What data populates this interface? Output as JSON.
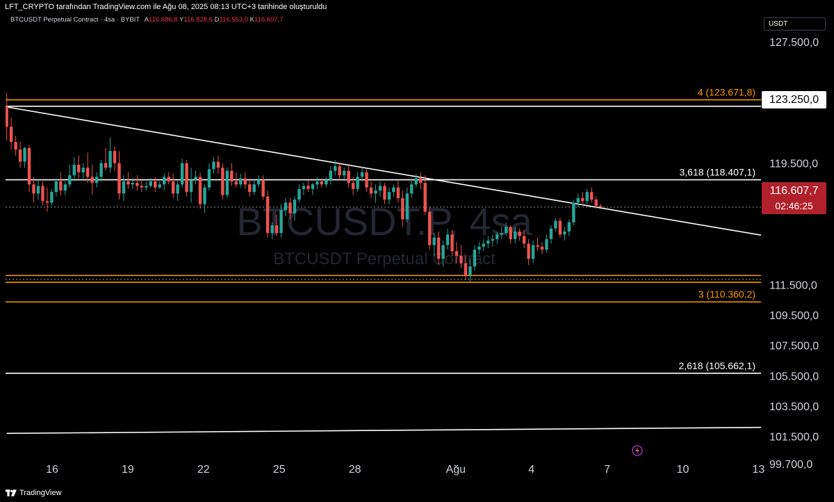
{
  "header": {
    "publisher_line": "LFT_CRYPTO tarafından TradingView.com ile Ağu 08, 2025 08:13 UTC+3 tarihinde oluşturuldu"
  },
  "legend": {
    "symbol": "BTCUSDT Perpetual Contract · 4sa · BYBIT",
    "open_label": "A",
    "open": "116.686,8",
    "high_label": "Y",
    "high": "116.828,6",
    "low_label": "D",
    "low": "116.553,0",
    "close_label": "K",
    "close": "116.607,7"
  },
  "watermark": {
    "ticker": "BTCUSDT.P, 4sa",
    "description": "BTCUSDT Perpetual Contract"
  },
  "price_axis": {
    "currency": "USDT",
    "last_price": "116.607,7",
    "countdown": "02:46:25",
    "marked_level": "123.250,0"
  },
  "footer": {
    "brand": "TradingView"
  },
  "colors": {
    "up": "#26a69a",
    "down": "#ef5350",
    "fib": "#ff9800",
    "line": "#ffffff",
    "badge": "#b0212b"
  },
  "icons": {
    "bottom_right": "lightning-icon"
  },
  "chart_data": {
    "type": "candlestick",
    "ylim": [
      99200,
      130000
    ],
    "y_ticks": [
      {
        "value": 127500,
        "label": "127.500,0"
      },
      {
        "value": 119500,
        "label": "119.500,0"
      },
      {
        "value": 111500,
        "label": "111.500,0"
      },
      {
        "value": 109500,
        "label": "109.500,0"
      },
      {
        "value": 107500,
        "label": "107.500,0"
      },
      {
        "value": 105500,
        "label": "105.500,0"
      },
      {
        "value": 103500,
        "label": "103.500,0"
      },
      {
        "value": 101500,
        "label": "101.500,0"
      },
      {
        "value": 99700,
        "label": "99.700,0"
      }
    ],
    "x_ticks": [
      {
        "label": "16",
        "day": 16
      },
      {
        "label": "19",
        "day": 19
      },
      {
        "label": "22",
        "day": 22
      },
      {
        "label": "25",
        "day": 25
      },
      {
        "label": "28",
        "day": 28
      },
      {
        "label": "Ağu",
        "day": 32
      },
      {
        "label": "4",
        "day": 35
      },
      {
        "label": "7",
        "day": 38
      },
      {
        "label": "10",
        "day": 41
      },
      {
        "label": "13",
        "day": 44
      }
    ],
    "xlim": [
      14.15,
      44.3
    ],
    "horizontal_levels": [
      {
        "label": "4 (123.671,8)",
        "value": 123671.8,
        "color": "#ff9800"
      },
      {
        "label": "",
        "value": 123250,
        "color": "#ffffff"
      },
      {
        "label": "3,618 (118.407,1)",
        "value": 118407.1,
        "color": "#ffffff"
      },
      {
        "label": "",
        "value": 116607.7,
        "color": "#ffffff",
        "style": "dotted"
      },
      {
        "label": "",
        "value": 112100,
        "color": "#ff9800"
      },
      {
        "label": "",
        "value": 111850,
        "color": "#ffffff",
        "style": "dotted"
      },
      {
        "label": "",
        "value": 111650,
        "color": "#ff9800"
      },
      {
        "label": "3 (110.360,2)",
        "value": 110360.2,
        "color": "#ff9800"
      },
      {
        "label": "2,618 (105.662,1)",
        "value": 105662.1,
        "color": "#ffffff"
      }
    ],
    "trendlines": [
      {
        "x1": 14.2,
        "y1": 123200,
        "x2": 44.3,
        "y2": 114700
      },
      {
        "x1": 14.2,
        "y1": 101700,
        "x2": 44.3,
        "y2": 102100
      }
    ],
    "candles": [
      [
        123250,
        124100,
        121000,
        121900
      ],
      [
        121900,
        122500,
        120400,
        120900
      ],
      [
        120900,
        121300,
        120000,
        120400
      ],
      [
        120400,
        120900,
        119200,
        119600
      ],
      [
        119600,
        120600,
        119200,
        120500
      ],
      [
        120500,
        120700,
        117600,
        118100
      ],
      [
        118100,
        118600,
        116900,
        117500
      ],
      [
        117500,
        118400,
        117100,
        118000
      ],
      [
        118000,
        118300,
        116700,
        117000
      ],
      [
        117000,
        117900,
        116300,
        116900
      ],
      [
        116900,
        117800,
        116700,
        117600
      ],
      [
        117600,
        118500,
        117300,
        118300
      ],
      [
        118300,
        118900,
        117400,
        117700
      ],
      [
        117700,
        118300,
        117400,
        118100
      ],
      [
        118100,
        119400,
        117900,
        118700
      ],
      [
        118700,
        119900,
        118300,
        119400
      ],
      [
        119400,
        120000,
        118500,
        118900
      ],
      [
        118900,
        119500,
        118500,
        119200
      ],
      [
        119200,
        120200,
        118200,
        118600
      ],
      [
        118600,
        119400,
        117400,
        118200
      ],
      [
        118200,
        118900,
        117900,
        118600
      ],
      [
        118600,
        119700,
        118300,
        119500
      ],
      [
        119500,
        120500,
        119000,
        119200
      ],
      [
        119200,
        121200,
        118900,
        120300
      ],
      [
        120300,
        120600,
        119000,
        119500
      ],
      [
        119500,
        120300,
        117100,
        117500
      ],
      [
        117500,
        118700,
        117000,
        118300
      ],
      [
        118300,
        118900,
        117800,
        118100
      ],
      [
        118100,
        118500,
        117800,
        118200
      ],
      [
        118200,
        118700,
        117700,
        118000
      ],
      [
        118000,
        118400,
        117600,
        117900
      ],
      [
        117900,
        118300,
        117700,
        118000
      ],
      [
        118000,
        118500,
        117900,
        118300
      ],
      [
        118300,
        118600,
        117600,
        117900
      ],
      [
        117900,
        118300,
        117800,
        118100
      ],
      [
        118100,
        118800,
        117700,
        118600
      ],
      [
        118600,
        118900,
        118100,
        118300
      ],
      [
        118300,
        118800,
        117200,
        117500
      ],
      [
        117500,
        118400,
        117000,
        118100
      ],
      [
        118100,
        119800,
        117900,
        119500
      ],
      [
        119500,
        119700,
        117300,
        117600
      ],
      [
        117600,
        119200,
        116900,
        118400
      ],
      [
        118400,
        119000,
        118100,
        118600
      ],
      [
        118600,
        118900,
        116500,
        116800
      ],
      [
        116800,
        118100,
        116200,
        117900
      ],
      [
        117900,
        119500,
        117700,
        119100
      ],
      [
        119100,
        119900,
        118800,
        119600
      ],
      [
        119600,
        120000,
        118800,
        119200
      ],
      [
        119200,
        119500,
        117100,
        117400
      ],
      [
        117400,
        119200,
        117200,
        119000
      ],
      [
        119000,
        119500,
        118000,
        118300
      ],
      [
        118300,
        118900,
        117900,
        118100
      ],
      [
        118100,
        118800,
        117900,
        118500
      ],
      [
        118500,
        118900,
        117800,
        118100
      ],
      [
        118100,
        118500,
        117300,
        117600
      ],
      [
        117600,
        118400,
        117400,
        118100
      ],
      [
        118100,
        118700,
        117900,
        118400
      ],
      [
        118400,
        118700,
        117100,
        117300
      ],
      [
        117300,
        117700,
        114600,
        114900
      ],
      [
        114900,
        115600,
        114500,
        115400
      ],
      [
        115400,
        116100,
        114700,
        114900
      ],
      [
        114900,
        116800,
        114600,
        116400
      ],
      [
        116400,
        117200,
        116000,
        116900
      ],
      [
        116900,
        117200,
        115800,
        116200
      ],
      [
        116200,
        117300,
        115700,
        117100
      ],
      [
        117100,
        118100,
        116900,
        117800
      ],
      [
        117800,
        118200,
        117400,
        118000
      ],
      [
        118000,
        118400,
        117600,
        117800
      ],
      [
        117800,
        118200,
        117400,
        118100
      ],
      [
        118100,
        118600,
        117800,
        118300
      ],
      [
        118300,
        118500,
        117900,
        118100
      ],
      [
        118100,
        118600,
        117900,
        118400
      ],
      [
        118400,
        119300,
        118100,
        119000
      ],
      [
        119000,
        119700,
        118700,
        119300
      ],
      [
        119300,
        119500,
        118400,
        118700
      ],
      [
        118700,
        119200,
        118300,
        119000
      ],
      [
        119000,
        119300,
        117900,
        118200
      ],
      [
        118200,
        118600,
        117400,
        117800
      ],
      [
        117800,
        118900,
        117600,
        118600
      ],
      [
        118600,
        119300,
        118300,
        118900
      ],
      [
        118900,
        119100,
        117600,
        117900
      ],
      [
        117900,
        118300,
        117200,
        117500
      ],
      [
        117500,
        118100,
        116900,
        117700
      ],
      [
        117700,
        118300,
        117300,
        118000
      ],
      [
        118000,
        118200,
        116800,
        117100
      ],
      [
        117100,
        117900,
        116800,
        117600
      ],
      [
        117600,
        118100,
        117300,
        117900
      ],
      [
        117900,
        118400,
        116900,
        117200
      ],
      [
        117200,
        117700,
        115300,
        115800
      ],
      [
        115800,
        117900,
        115600,
        117500
      ],
      [
        117500,
        118500,
        117200,
        118100
      ],
      [
        118100,
        118800,
        117900,
        118500
      ],
      [
        118500,
        118900,
        117800,
        118200
      ],
      [
        118200,
        118700,
        116100,
        116300
      ],
      [
        116300,
        116600,
        113800,
        114100
      ],
      [
        114100,
        114900,
        113400,
        114600
      ],
      [
        114600,
        115000,
        112800,
        113200
      ],
      [
        113200,
        114400,
        112700,
        114100
      ],
      [
        114100,
        115200,
        113800,
        114800
      ],
      [
        114800,
        115100,
        113400,
        113700
      ],
      [
        113700,
        114300,
        112900,
        113400
      ],
      [
        113400,
        114100,
        112600,
        112900
      ],
      [
        112900,
        113400,
        111800,
        112100
      ],
      [
        112100,
        113200,
        111700,
        112700
      ],
      [
        112700,
        114100,
        112400,
        113800
      ],
      [
        113800,
        114300,
        113500,
        114000
      ],
      [
        114000,
        114500,
        113700,
        114200
      ],
      [
        114200,
        114700,
        113900,
        114400
      ],
      [
        114400,
        114800,
        114000,
        114500
      ],
      [
        114500,
        115000,
        114200,
        114800
      ],
      [
        114800,
        115300,
        114500,
        114900
      ],
      [
        114900,
        115600,
        114700,
        115300
      ],
      [
        115300,
        115400,
        114200,
        114500
      ],
      [
        114500,
        115300,
        114200,
        115000
      ],
      [
        115000,
        115200,
        114400,
        114700
      ],
      [
        114700,
        115100,
        113900,
        114200
      ],
      [
        114200,
        114500,
        112800,
        113200
      ],
      [
        113200,
        114400,
        112900,
        114100
      ],
      [
        114100,
        114600,
        113700,
        114000
      ],
      [
        114000,
        114300,
        113500,
        113800
      ],
      [
        113800,
        114800,
        113600,
        114500
      ],
      [
        114500,
        115400,
        114200,
        115200
      ],
      [
        115200,
        115900,
        115000,
        115700
      ],
      [
        115700,
        115900,
        114600,
        114800
      ],
      [
        114800,
        115300,
        114400,
        115000
      ],
      [
        115000,
        115800,
        114700,
        115600
      ],
      [
        115600,
        117100,
        115400,
        116900
      ],
      [
        116900,
        117500,
        116600,
        117200
      ],
      [
        117200,
        117600,
        116700,
        117000
      ],
      [
        117000,
        117800,
        116800,
        117600
      ],
      [
        117600,
        117900,
        116900,
        117100
      ],
      [
        117100,
        117300,
        116500,
        116686.8
      ],
      [
        116686.8,
        116828.6,
        116553,
        116607.7
      ]
    ]
  }
}
